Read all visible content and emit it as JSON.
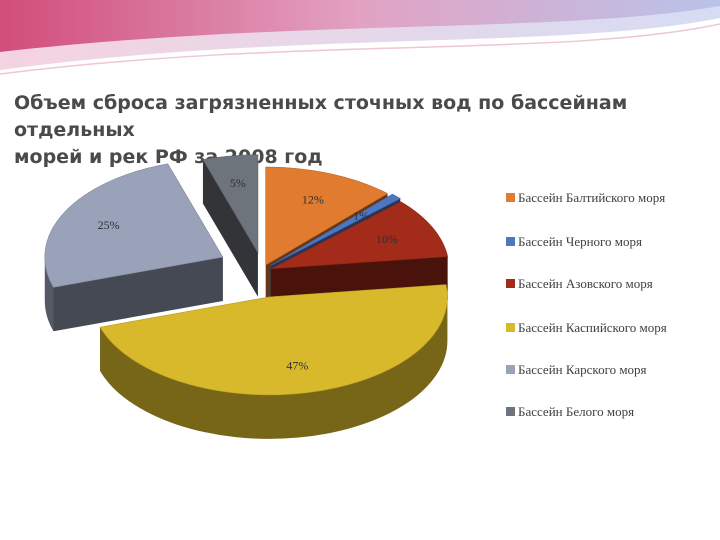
{
  "chart_data": {
    "type": "pie",
    "title": [
      "Объем сброса загрязненных сточных вод по бассейнам отдельных",
      "морей и рек РФ за 2008 год"
    ],
    "categories": [
      "Бассейн Балтийского моря",
      "Бассейн Черного моря",
      "Бассейн Азовского моря",
      "Бассейн Каспийского моря",
      "Бассейн Карского моря",
      "Бассейн Белого моря"
    ],
    "values": [
      12,
      1,
      10,
      47,
      25,
      5
    ],
    "labels": [
      "12%",
      "1%",
      "10%",
      "47%",
      "25%",
      "5%"
    ],
    "colors": [
      "#e07b30",
      "#4f76c2",
      "#a22b1a",
      "#d8b92b",
      "#9aa2ba",
      "#6e747c"
    ],
    "legend": "right"
  }
}
